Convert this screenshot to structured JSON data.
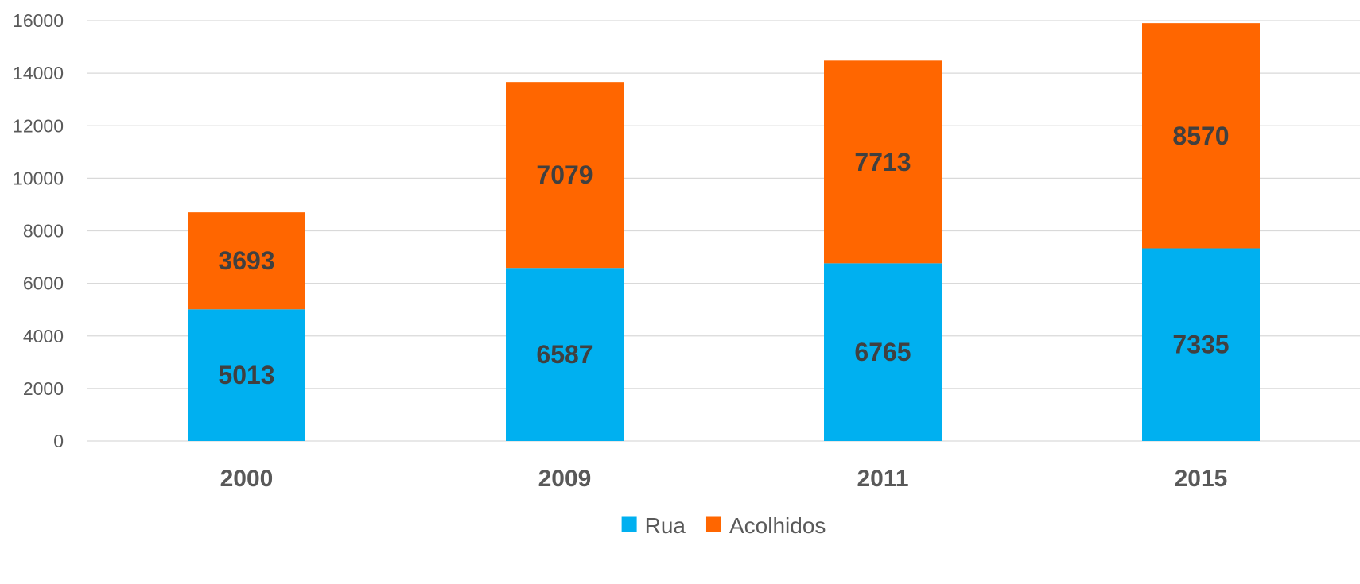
{
  "chart_data": {
    "type": "bar",
    "stacked": true,
    "categories": [
      "2000",
      "2009",
      "2011",
      "2015"
    ],
    "series": [
      {
        "name": "Rua",
        "color": "#00B0F0",
        "values": [
          5013,
          6587,
          6765,
          7335
        ]
      },
      {
        "name": "Acolhidos",
        "color": "#FF6600",
        "values": [
          3693,
          7079,
          7713,
          8570
        ]
      }
    ],
    "ylim": [
      0,
      16000
    ],
    "yticks": [
      0,
      2000,
      4000,
      6000,
      8000,
      10000,
      12000,
      14000,
      16000
    ],
    "grid": true,
    "legend": "bottom-center",
    "title": "",
    "xlabel": "",
    "ylabel": ""
  }
}
